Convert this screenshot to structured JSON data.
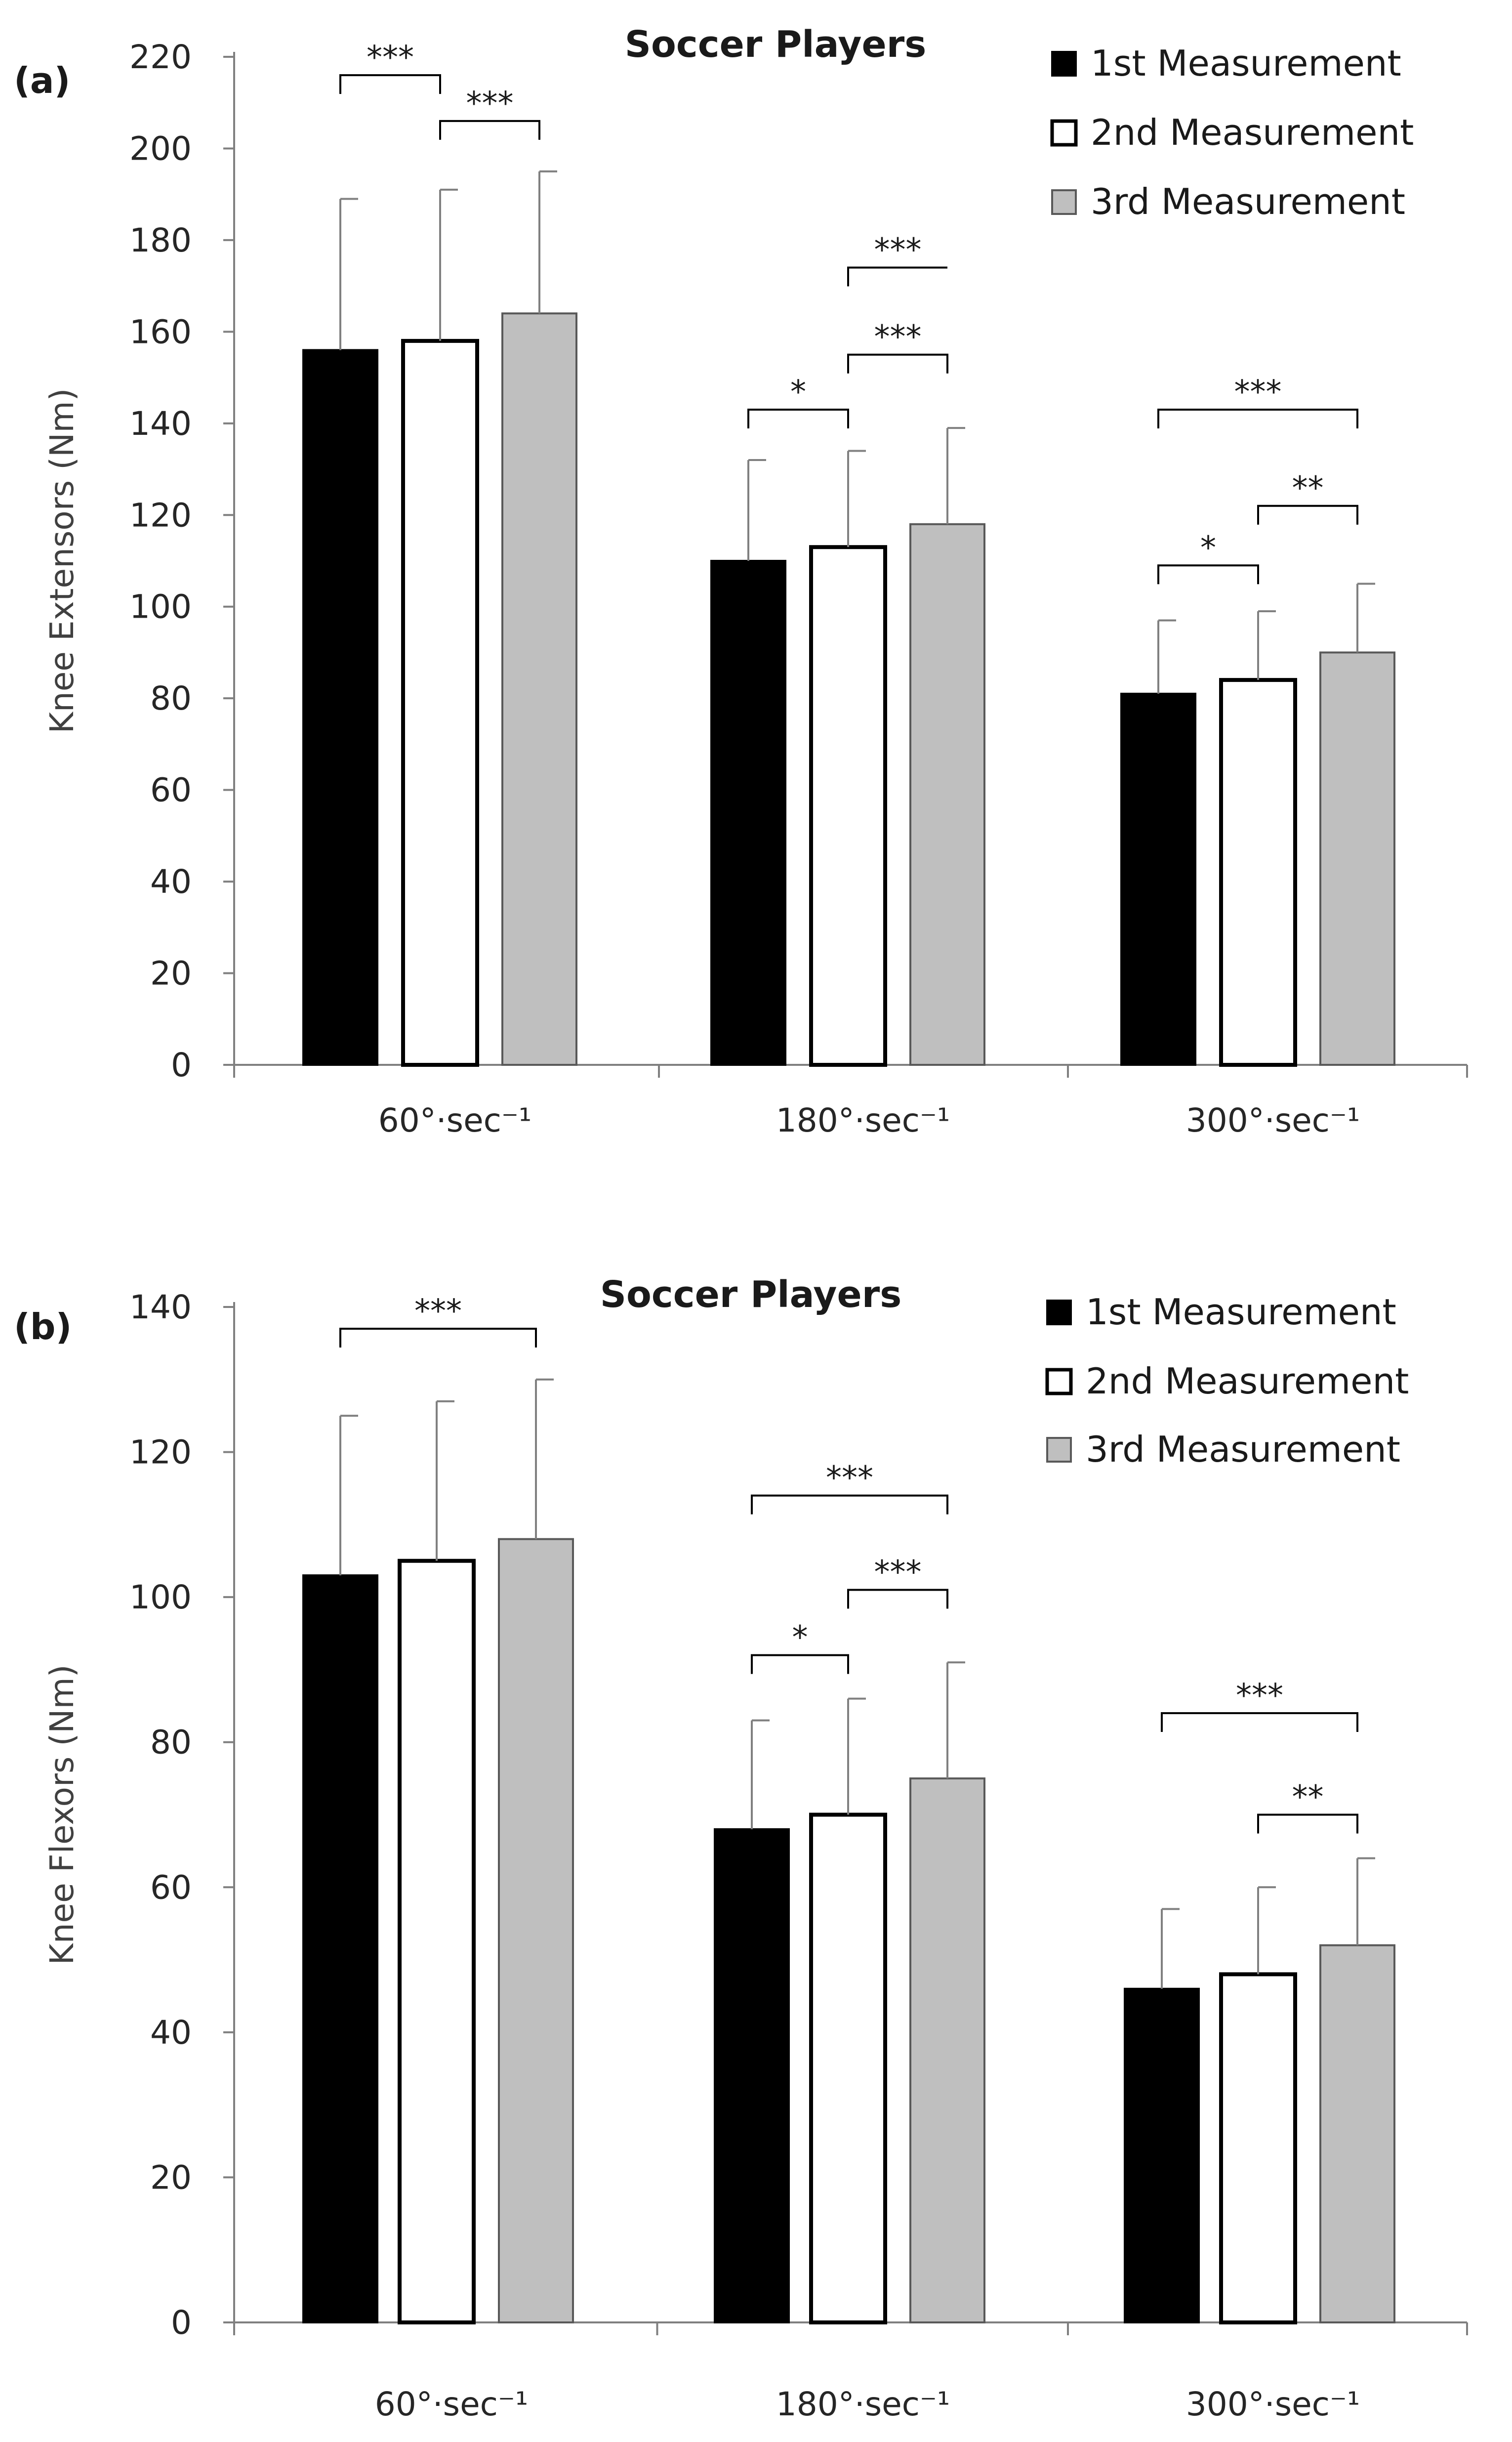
{
  "chart_data": [
    {
      "type": "bar",
      "panel_label": "(a)",
      "title": "Soccer Players",
      "ylabel": "Knee Extensors (Nm)",
      "xlabel": "",
      "ylim": [
        0,
        220
      ],
      "yticks": [
        "0",
        "20",
        "40",
        "60",
        "80",
        "100",
        "120",
        "140",
        "160",
        "180",
        "200",
        "220"
      ],
      "categories": [
        "60°·sec⁻¹",
        "180°·sec⁻¹",
        "300°·sec⁻¹"
      ],
      "legend_position": "top-right",
      "series": [
        {
          "name": "1st Measurement",
          "color": "#000000",
          "values": [
            156,
            110,
            81
          ],
          "errors": [
            33,
            22,
            16
          ]
        },
        {
          "name": "2nd Measurement",
          "color": "#ffffff",
          "values": [
            158,
            113,
            84
          ],
          "errors": [
            33,
            21,
            15
          ]
        },
        {
          "name": "3rd Measurement",
          "color": "#bfbfbf",
          "values": [
            164,
            118,
            90
          ],
          "errors": [
            31,
            21,
            15
          ]
        }
      ],
      "significance": [
        {
          "category": 0,
          "from": 0,
          "to": 1,
          "level": 216,
          "label": "***",
          "open_end": false
        },
        {
          "category": 0,
          "from": 1,
          "to": 2,
          "level": 206,
          "label": "***",
          "open_end": false
        },
        {
          "category": 1,
          "from": 1,
          "to": 2,
          "level": 174,
          "label": "***",
          "open_end": true
        },
        {
          "category": 1,
          "from": 1,
          "to": 2,
          "level": 155,
          "label": "***",
          "open_end": false
        },
        {
          "category": 1,
          "from": 0,
          "to": 1,
          "level": 143,
          "label": "*",
          "open_end": false
        },
        {
          "category": 2,
          "from": 0,
          "to": 2,
          "level": 143,
          "label": "***",
          "open_end": false
        },
        {
          "category": 2,
          "from": 1,
          "to": 2,
          "level": 122,
          "label": "**",
          "open_end": false
        },
        {
          "category": 2,
          "from": 0,
          "to": 1,
          "level": 109,
          "label": "*",
          "open_end": false
        }
      ]
    },
    {
      "type": "bar",
      "panel_label": "(b)",
      "title": "Soccer Players",
      "ylabel": "Knee Flexors (Nm)",
      "xlabel": "",
      "ylim": [
        0,
        140
      ],
      "yticks": [
        "0",
        "20",
        "40",
        "60",
        "80",
        "100",
        "120",
        "140"
      ],
      "categories": [
        "60°·sec⁻¹",
        "180°·sec⁻¹",
        "300°·sec⁻¹"
      ],
      "legend_position": "top-right",
      "series": [
        {
          "name": "1st Measurement",
          "color": "#000000",
          "values": [
            103,
            68,
            46
          ],
          "errors": [
            22,
            15,
            11
          ]
        },
        {
          "name": "2nd Measurement",
          "color": "#ffffff",
          "values": [
            105,
            70,
            48
          ],
          "errors": [
            22,
            16,
            12
          ]
        },
        {
          "name": "3rd Measurement",
          "color": "#bfbfbf",
          "values": [
            108,
            75,
            52
          ],
          "errors": [
            22,
            16,
            12
          ]
        }
      ],
      "significance": [
        {
          "category": 0,
          "from": 0,
          "to": 2,
          "level": 137,
          "label": "***",
          "open_end": false
        },
        {
          "category": 1,
          "from": 0,
          "to": 2,
          "level": 114,
          "label": "***",
          "open_end": false
        },
        {
          "category": 1,
          "from": 1,
          "to": 2,
          "level": 101,
          "label": "***",
          "open_end": false
        },
        {
          "category": 1,
          "from": 0,
          "to": 1,
          "level": 92,
          "label": "*",
          "open_end": false
        },
        {
          "category": 2,
          "from": 0,
          "to": 2,
          "level": 84,
          "label": "***",
          "open_end": false
        },
        {
          "category": 2,
          "from": 1,
          "to": 2,
          "level": 70,
          "label": "**",
          "open_end": false
        }
      ]
    }
  ]
}
